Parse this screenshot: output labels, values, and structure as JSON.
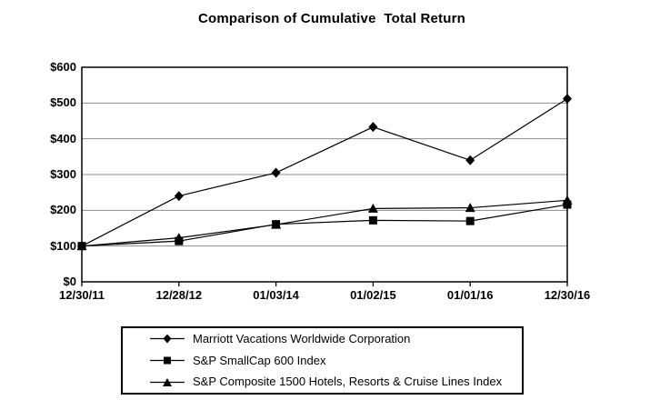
{
  "title": "Comparison of Cumulative  Total Return",
  "chart_data": {
    "type": "line",
    "title": "Comparison of Cumulative  Total Return",
    "categories": [
      "12/30/11",
      "12/28/12",
      "01/03/14",
      "01/02/15",
      "01/01/16",
      "12/30/16"
    ],
    "series": [
      {
        "name": "Marriott Vacations Worldwide Corporation",
        "marker": "diamond",
        "values": [
          100,
          240,
          305,
          433,
          340,
          512
        ]
      },
      {
        "name": "S&P SmallCap 600 Index",
        "marker": "square",
        "values": [
          100,
          114,
          161,
          172,
          170,
          216
        ]
      },
      {
        "name": "S&P Composite 1500 Hotels, Resorts & Cruise Lines Index",
        "marker": "triangle",
        "values": [
          100,
          123,
          160,
          205,
          207,
          228
        ]
      }
    ],
    "ylim": [
      0,
      600
    ],
    "ytick_step": 100,
    "ytick_labels": [
      "$0",
      "$100",
      "$200",
      "$300",
      "$400",
      "$500",
      "$600"
    ],
    "xlabel": "",
    "ylabel": "",
    "grid": "horizontal",
    "legend_position": "bottom",
    "colors": {
      "line": "#000000",
      "grid": "#8c8c8c",
      "text": "#000000",
      "background": "#ffffff"
    }
  }
}
